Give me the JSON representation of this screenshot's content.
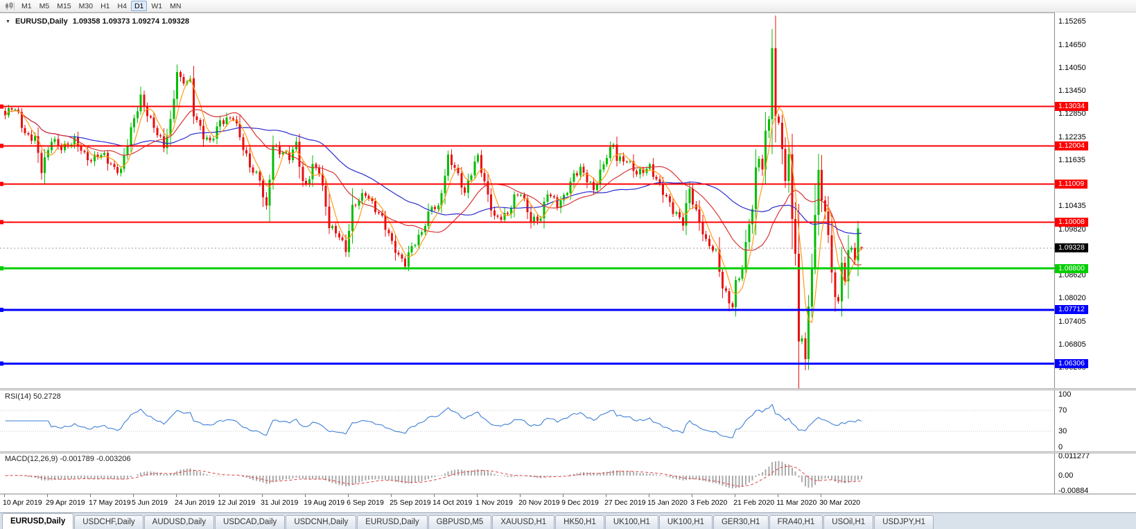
{
  "toolbar": {
    "chart_type_icon": "candlestick-chart-icon",
    "timeframes": [
      "M1",
      "M5",
      "M15",
      "M30",
      "H1",
      "H4",
      "D1",
      "W1",
      "MN"
    ],
    "active_timeframe": "D1"
  },
  "chart_header": {
    "symbol": "EURUSD,Daily",
    "ohlc_text": "1.09358 1.09373 1.09274 1.09328"
  },
  "panels": {
    "rsi_label": "RSI(14) 50.2728",
    "macd_label": "MACD(12,26,9) -0.001789 -0.003206"
  },
  "tabs": [
    {
      "label": "EURUSD,Daily",
      "active": true
    },
    {
      "label": "USDCHF,Daily",
      "active": false
    },
    {
      "label": "AUDUSD,Daily",
      "active": false
    },
    {
      "label": "USDCAD,Daily",
      "active": false
    },
    {
      "label": "USDCNH,Daily",
      "active": false
    },
    {
      "label": "EURUSD,Daily",
      "active": false
    },
    {
      "label": "GBPUSD,M5",
      "active": false
    },
    {
      "label": "XAUUSD,H1",
      "active": false
    },
    {
      "label": "HK50,H1",
      "active": false
    },
    {
      "label": "UK100,H1",
      "active": false
    },
    {
      "label": "UK100,H1",
      "active": false
    },
    {
      "label": "GER30,H1",
      "active": false
    },
    {
      "label": "FRA40,H1",
      "active": false
    },
    {
      "label": "USOil,H1",
      "active": false
    },
    {
      "label": "USDJPY,H1",
      "active": false
    }
  ],
  "colors": {
    "candle_up": "#00BE00",
    "candle_down": "#E81010",
    "rsi_line": "#3E7FD6",
    "macd_hist": "#ABABAB",
    "macd_signal": "#E04040",
    "bid_tag": "#000000"
  },
  "chart_data": {
    "type": "candlestick",
    "symbol": "EURUSD",
    "timeframe": "Daily",
    "current_ohlc": {
      "open": 1.09358,
      "high": 1.09373,
      "low": 1.09274,
      "close": 1.09328
    },
    "visible_price_range": [
      1.0566,
      1.1546
    ],
    "price_axis_ticks": [
      "1.15265",
      "1.14650",
      "1.14050",
      "1.13450",
      "1.12850",
      "1.12235",
      "1.11635",
      "1.10435",
      "1.09820",
      "1.08620",
      "1.08020",
      "1.07405",
      "1.06805",
      "1.06205"
    ],
    "horizontal_lines": [
      {
        "label": "1.13034",
        "price": 1.13034,
        "color": "#FF0000"
      },
      {
        "label": "1.12004",
        "price": 1.12004,
        "color": "#FF0000"
      },
      {
        "label": "1.11009",
        "price": 1.11009,
        "color": "#FF0000"
      },
      {
        "label": "1.10008",
        "price": 1.10008,
        "color": "#FF0000"
      },
      {
        "label": "1.08800",
        "price": 1.088,
        "color": "#00CE00"
      },
      {
        "label": "1.07712",
        "price": 1.07712,
        "color": "#0000FF"
      },
      {
        "label": "1.06306",
        "price": 1.06306,
        "color": "#0000FF"
      }
    ],
    "bid_label": "1.09328",
    "candle_count": 260,
    "bars_per_date_label": 13,
    "date_labels": [
      "10 Apr 2019",
      "29 Apr 2019",
      "17 May 2019",
      "5 Jun 2019",
      "24 Jun 2019",
      "12 Jul 2019",
      "31 Jul 2019",
      "19 Aug 2019",
      "6 Sep 2019",
      "25 Sep 2019",
      "14 Oct 2019",
      "1 Nov 2019",
      "20 Nov 2019",
      "9 Dec 2019",
      "27 Dec 2019",
      "15 Jan 2020",
      "3 Feb 2020",
      "21 Feb 2020",
      "11 Mar 2020",
      "30 Mar 2020"
    ],
    "price_path_anchors": [
      [
        0,
        1.1274
      ],
      [
        2,
        1.1299
      ],
      [
        4,
        1.1285
      ],
      [
        6,
        1.1236
      ],
      [
        9,
        1.1222
      ],
      [
        11,
        1.1133
      ],
      [
        13,
        1.1183
      ],
      [
        14,
        1.1215
      ],
      [
        17,
        1.12
      ],
      [
        21,
        1.1216
      ],
      [
        24,
        1.117
      ],
      [
        26,
        1.1158
      ],
      [
        28,
        1.118
      ],
      [
        30,
        1.1182
      ],
      [
        33,
        1.114
      ],
      [
        35,
        1.1131
      ],
      [
        36,
        1.1167
      ],
      [
        38,
        1.124
      ],
      [
        41,
        1.1333
      ],
      [
        43,
        1.129
      ],
      [
        45,
        1.125
      ],
      [
        48,
        1.1193
      ],
      [
        50,
        1.126
      ],
      [
        52,
        1.1399
      ],
      [
        53,
        1.1378
      ],
      [
        56,
        1.1373
      ],
      [
        57,
        1.1285
      ],
      [
        60,
        1.122
      ],
      [
        62,
        1.1208
      ],
      [
        65,
        1.127
      ],
      [
        69,
        1.1276
      ],
      [
        72,
        1.119
      ],
      [
        74,
        1.1145
      ],
      [
        77,
        1.112
      ],
      [
        78,
        1.1075
      ],
      [
        79,
        1.104
      ],
      [
        81,
        1.12
      ],
      [
        83,
        1.118
      ],
      [
        86,
        1.117
      ],
      [
        88,
        1.121
      ],
      [
        90,
        1.111
      ],
      [
        91,
        1.11
      ],
      [
        93,
        1.1145
      ],
      [
        95,
        1.113
      ],
      [
        98,
        1.0991
      ],
      [
        101,
        1.0972
      ],
      [
        103,
        1.093
      ],
      [
        105,
        1.1035
      ],
      [
        108,
        1.1063
      ],
      [
        109,
        1.1073
      ],
      [
        112,
        1.104
      ],
      [
        114,
        1.1017
      ],
      [
        117,
        1.0944
      ],
      [
        119,
        1.0905
      ],
      [
        121,
        1.089
      ],
      [
        123,
        1.094
      ],
      [
        126,
        1.098
      ],
      [
        129,
        1.104
      ],
      [
        131,
        1.103
      ],
      [
        134,
        1.117
      ],
      [
        136,
        1.115
      ],
      [
        139,
        1.108
      ],
      [
        142,
        1.1152
      ],
      [
        143,
        1.1165
      ],
      [
        146,
        1.107
      ],
      [
        148,
        1.1018
      ],
      [
        152,
        1.1021
      ],
      [
        154,
        1.106
      ],
      [
        156,
        1.1074
      ],
      [
        159,
        1.101
      ],
      [
        162,
        1.1018
      ],
      [
        164,
        1.1078
      ],
      [
        167,
        1.104
      ],
      [
        169,
        1.1065
      ],
      [
        172,
        1.113
      ],
      [
        174,
        1.1145
      ],
      [
        178,
        1.1078
      ],
      [
        182,
        1.1177
      ],
      [
        184,
        1.1212
      ],
      [
        185,
        1.1172
      ],
      [
        188,
        1.116
      ],
      [
        191,
        1.1122
      ],
      [
        195,
        1.115
      ],
      [
        198,
        1.11
      ],
      [
        202,
        1.1025
      ],
      [
        205,
        1.1
      ],
      [
        207,
        1.1093
      ],
      [
        208,
        1.106
      ],
      [
        212,
        1.0946
      ],
      [
        215,
        1.0915
      ],
      [
        217,
        1.0831
      ],
      [
        220,
        1.0785
      ],
      [
        221,
        1.0846
      ],
      [
        223,
        1.088
      ],
      [
        225,
        1.0998
      ],
      [
        226,
        1.1026
      ],
      [
        227,
        1.1134
      ],
      [
        228,
        1.1173
      ],
      [
        229,
        1.1135
      ],
      [
        230,
        1.1241
      ],
      [
        231,
        1.1284
      ],
      [
        232,
        1.1456
      ],
      [
        233,
        1.128
      ],
      [
        234,
        1.1271
      ],
      [
        235,
        1.1184
      ],
      [
        236,
        1.1105
      ],
      [
        237,
        1.118
      ],
      [
        238,
        1.0995
      ],
      [
        239,
        1.0916
      ],
      [
        240,
        1.0692
      ],
      [
        241,
        1.069
      ],
      [
        242,
        1.065
      ],
      [
        243,
        1.079
      ],
      [
        244,
        1.088
      ],
      [
        245,
        1.103
      ],
      [
        246,
        1.1141
      ],
      [
        247,
        1.1048
      ],
      [
        248,
        1.1031
      ],
      [
        249,
        1.0961
      ],
      [
        250,
        1.0856
      ],
      [
        251,
        1.0808
      ],
      [
        252,
        1.0791
      ],
      [
        253,
        1.089
      ],
      [
        254,
        1.0859
      ],
      [
        255,
        1.093
      ],
      [
        256,
        1.0935
      ],
      [
        257,
        1.0913
      ],
      [
        258,
        1.098
      ],
      [
        259,
        1.0933
      ]
    ],
    "wick_extremes": [
      {
        "index": 232,
        "high": 1.1495
      },
      {
        "index": 242,
        "low": 1.0636
      }
    ],
    "moving_averages": [
      {
        "name": "fast",
        "period": 5,
        "color": "#FF9C14"
      },
      {
        "name": "mid",
        "period": 20,
        "color": "#D83434"
      },
      {
        "name": "slow",
        "period": 45,
        "color": "#2A2AD0"
      }
    ],
    "rsi": {
      "period": 14,
      "current": 50.2728,
      "levels": [
        70,
        30
      ],
      "axis_ticks": [
        "100",
        "70",
        "30",
        "0"
      ]
    },
    "macd": {
      "fast": 12,
      "slow": 26,
      "signal": 9,
      "current_macd": -0.001789,
      "current_signal": -0.003206,
      "axis_ticks": [
        "0.011277",
        "0.00",
        "-0.00884"
      ]
    }
  }
}
